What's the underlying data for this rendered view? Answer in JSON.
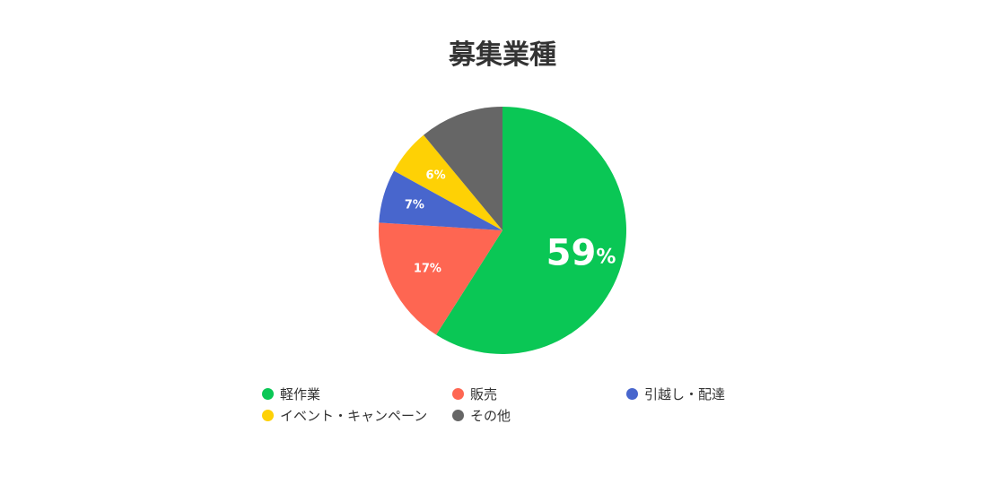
{
  "chart_data": {
    "type": "pie",
    "title": "募集業種",
    "slices": [
      {
        "label": "軽作業",
        "value": 59,
        "color": "#0ac755",
        "display": "59",
        "unit": "%"
      },
      {
        "label": "販売",
        "value": 17,
        "color": "#fe6652",
        "display": "17%"
      },
      {
        "label": "引越し・配達",
        "value": 7,
        "color": "#4866cd",
        "display": "7%"
      },
      {
        "label": "イベント・キャンペーン",
        "value": 6,
        "color": "#fed105",
        "display": "6%"
      },
      {
        "label": "その他",
        "value": 11,
        "color": "#666666",
        "display": ""
      }
    ],
    "legend_position": "bottom"
  }
}
